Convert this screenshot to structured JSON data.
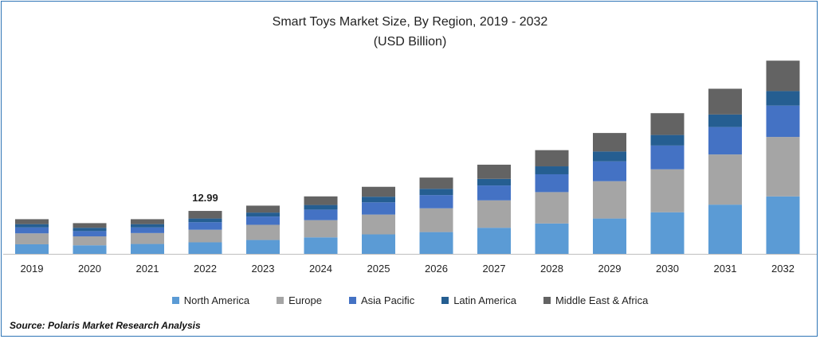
{
  "chart_data": {
    "type": "bar",
    "stacked": true,
    "title": "Smart Toys Market Size, By Region, 2019 - 2032",
    "subtitle": "(USD Billion)",
    "categories": [
      "2019",
      "2020",
      "2021",
      "2022",
      "2023",
      "2024",
      "2025",
      "2026",
      "2027",
      "2028",
      "2029",
      "2030",
      "2031",
      "2032"
    ],
    "series": [
      {
        "name": "North America",
        "color": "#5b9bd5",
        "values": [
          2.9,
          2.6,
          3.0,
          3.5,
          4.2,
          5.0,
          5.9,
          6.6,
          7.9,
          9.2,
          10.7,
          12.6,
          14.9,
          17.4
        ]
      },
      {
        "name": "Europe",
        "color": "#a5a5a5",
        "values": [
          3.3,
          2.7,
          3.3,
          3.8,
          4.6,
          5.2,
          6.0,
          7.2,
          8.3,
          9.5,
          11.3,
          13.0,
          15.2,
          18.0
        ]
      },
      {
        "name": "Asia Pacific",
        "color": "#4472c4",
        "values": [
          1.8,
          1.6,
          1.7,
          2.3,
          2.5,
          3.2,
          3.7,
          4.0,
          4.5,
          5.4,
          6.0,
          7.2,
          8.3,
          9.5
        ]
      },
      {
        "name": "Latin America",
        "color": "#255e91",
        "values": [
          1.0,
          1.0,
          1.0,
          1.1,
          1.2,
          1.4,
          1.7,
          1.9,
          2.0,
          2.4,
          3.0,
          3.2,
          3.8,
          4.4
        ]
      },
      {
        "name": "Middle East & Africa",
        "color": "#636363",
        "values": [
          1.5,
          1.4,
          1.5,
          2.3,
          2.1,
          2.6,
          3.0,
          3.4,
          4.3,
          4.9,
          5.6,
          6.6,
          7.8,
          9.2
        ]
      }
    ],
    "annotations": [
      {
        "category": "2022",
        "text": "12.99"
      }
    ],
    "ylim": [
      0,
      60
    ],
    "grid": false,
    "legend_position": "bottom",
    "xlabel": "",
    "ylabel": ""
  },
  "source": "Source: Polaris  Market Research Analysis"
}
